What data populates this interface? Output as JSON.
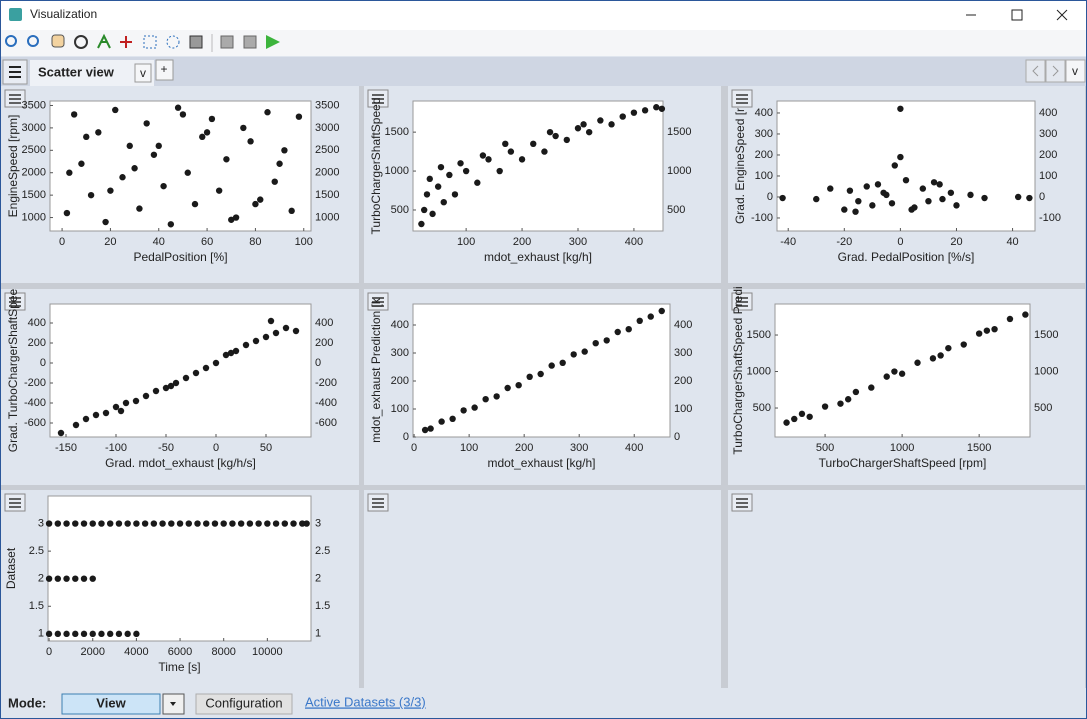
{
  "window": {
    "title": "Visualization"
  },
  "tabs": {
    "active": "Scatter view",
    "menu": "v",
    "add": "+",
    "list": "v"
  },
  "footer": {
    "mode_label": "Mode:",
    "mode_value": "View",
    "configuration": "Configuration",
    "active_datasets": "Active Datasets (3/3)"
  },
  "chart_data": [
    {
      "type": "scatter",
      "x_label": "PedalPosition [%]",
      "y_label": "EngineSpeed [rpm]",
      "color": "#1a1a1a",
      "xlim": [
        -5,
        103
      ],
      "ylim": [
        700,
        3600
      ],
      "xticks": [
        0,
        20,
        40,
        60,
        80,
        100
      ],
      "yticks": [
        1000,
        1500,
        2000,
        2500,
        3000,
        3500
      ],
      "x": [
        2,
        5,
        8,
        12,
        15,
        18,
        22,
        25,
        28,
        32,
        35,
        38,
        42,
        45,
        48,
        52,
        55,
        58,
        62,
        65,
        68,
        72,
        75,
        78,
        82,
        85,
        88,
        92,
        95,
        98,
        10,
        30,
        50,
        70,
        90,
        20,
        40,
        60,
        80,
        3
      ],
      "y": [
        1100,
        3300,
        2200,
        1500,
        2900,
        900,
        3400,
        1900,
        2600,
        1200,
        3100,
        2400,
        1700,
        850,
        3450,
        2000,
        1300,
        2800,
        3200,
        1600,
        2300,
        1000,
        3000,
        2700,
        1400,
        3350,
        1800,
        2500,
        1150,
        3250,
        2800,
        2100,
        3300,
        950,
        2200,
        1600,
        2600,
        2900,
        1300,
        2000
      ]
    },
    {
      "type": "scatter",
      "x_label": "mdot_exhaust [kg/h]",
      "y_label": "TurboChargerShaftSpeed",
      "color": "#1a1a1a",
      "xlim": [
        5,
        452
      ],
      "ylim": [
        230,
        1900
      ],
      "xticks": [
        100,
        200,
        300,
        400
      ],
      "yticks": [
        500,
        1000,
        1500
      ],
      "x": [
        20,
        25,
        30,
        40,
        50,
        60,
        70,
        80,
        100,
        120,
        140,
        160,
        180,
        200,
        220,
        240,
        260,
        280,
        300,
        320,
        340,
        360,
        380,
        400,
        420,
        440,
        450,
        35,
        55,
        90,
        130,
        170,
        250,
        310
      ],
      "y": [
        320,
        500,
        700,
        450,
        800,
        600,
        950,
        700,
        1000,
        850,
        1150,
        1000,
        1250,
        1150,
        1350,
        1250,
        1450,
        1400,
        1550,
        1500,
        1650,
        1600,
        1700,
        1750,
        1780,
        1820,
        1800,
        900,
        1050,
        1100,
        1200,
        1350,
        1500,
        1600
      ]
    },
    {
      "type": "scatter",
      "x_label": "Grad. PedalPosition [%/s]",
      "y_label": "Grad. EngineSpeed [r",
      "color": "#1a1a1a",
      "xlim": [
        -44,
        48
      ],
      "ylim": [
        -162,
        457
      ],
      "xticks": [
        -40,
        -20,
        0,
        20,
        40
      ],
      "yticks": [
        -100,
        0,
        100,
        200,
        300,
        400
      ],
      "x": [
        -42,
        -30,
        -25,
        -20,
        -18,
        -15,
        -12,
        -10,
        -8,
        -5,
        -3,
        0,
        2,
        5,
        8,
        10,
        12,
        15,
        18,
        20,
        25,
        30,
        42,
        46,
        -16,
        -6,
        4,
        14,
        0,
        -2
      ],
      "y": [
        -5,
        -10,
        40,
        -60,
        30,
        -20,
        50,
        -40,
        60,
        10,
        -30,
        420,
        80,
        -50,
        40,
        -20,
        70,
        -10,
        20,
        -40,
        10,
        -5,
        0,
        -5,
        -70,
        20,
        -60,
        60,
        190,
        150
      ]
    },
    {
      "type": "scatter",
      "x_label": "Grad. mdot_exhaust [kg/h/s]",
      "y_label": "Grad. TurboChargerShaftSpee",
      "color": "#1a1a1a",
      "xlim": [
        -166,
        95
      ],
      "ylim": [
        -740,
        590
      ],
      "xticks": [
        -150,
        -100,
        -50,
        0,
        50
      ],
      "yticks": [
        -600,
        -400,
        -200,
        0,
        200,
        400
      ],
      "x": [
        -155,
        -140,
        -130,
        -120,
        -110,
        -100,
        -90,
        -80,
        -70,
        -60,
        -50,
        -40,
        -30,
        -20,
        -10,
        0,
        10,
        20,
        30,
        40,
        50,
        60,
        70,
        80,
        -95,
        -45,
        15,
        55
      ],
      "y": [
        -700,
        -620,
        -560,
        -520,
        -500,
        -440,
        -400,
        -380,
        -330,
        -280,
        -250,
        -200,
        -150,
        -100,
        -50,
        0,
        80,
        120,
        180,
        220,
        260,
        300,
        350,
        320,
        -480,
        -230,
        100,
        420
      ]
    },
    {
      "type": "scatter",
      "x_label": "mdot_exhaust [kg/h]",
      "y_label": "mdot_exhaust Prediction [k",
      "color": "#1a1a1a",
      "xlim": [
        -2,
        465
      ],
      "ylim": [
        0,
        475
      ],
      "xticks": [
        0,
        100,
        200,
        300,
        400
      ],
      "yticks": [
        0,
        100,
        200,
        300,
        400
      ],
      "x": [
        20,
        30,
        50,
        70,
        90,
        110,
        130,
        150,
        170,
        190,
        210,
        230,
        250,
        270,
        290,
        310,
        330,
        350,
        370,
        390,
        410,
        430,
        450
      ],
      "y": [
        25,
        30,
        55,
        65,
        95,
        105,
        135,
        145,
        175,
        185,
        215,
        225,
        255,
        265,
        295,
        305,
        335,
        345,
        375,
        385,
        415,
        430,
        450
      ]
    },
    {
      "type": "scatter",
      "x_label": "TurboChargerShaftSpeed [rpm]",
      "y_label": "TurboChargerShaftSpeed Predi",
      "color": "#1a1a1a",
      "xlim": [
        175,
        1830
      ],
      "ylim": [
        103,
        1925
      ],
      "xticks": [
        500,
        1000,
        1500
      ],
      "yticks": [
        500,
        1000,
        1500
      ],
      "x": [
        250,
        300,
        400,
        500,
        600,
        700,
        800,
        900,
        1000,
        1100,
        1200,
        1300,
        1400,
        1500,
        1600,
        1700,
        1800,
        350,
        650,
        950,
        1250,
        1550
      ],
      "y": [
        300,
        350,
        380,
        520,
        560,
        720,
        780,
        930,
        970,
        1120,
        1180,
        1320,
        1370,
        1520,
        1580,
        1720,
        1780,
        420,
        620,
        1000,
        1220,
        1560
      ]
    },
    {
      "type": "scatter",
      "x_label": "Time [s]",
      "y_label": "Dataset",
      "color": "#1a1a1a",
      "xlim": [
        -50,
        12000
      ],
      "ylim": [
        0.87,
        3.5
      ],
      "xticks": [
        0,
        2000,
        4000,
        6000,
        8000,
        10000
      ],
      "yticks": [
        1,
        1.5,
        2,
        2.5,
        3
      ],
      "x": [
        0,
        400,
        800,
        1200,
        1600,
        2000,
        2400,
        2800,
        3200,
        3600,
        4000,
        0,
        400,
        800,
        1200,
        1600,
        2000,
        0,
        400,
        800,
        1200,
        1600,
        2000,
        2400,
        2800,
        3200,
        3600,
        4000,
        4400,
        4800,
        5200,
        5600,
        6000,
        6400,
        6800,
        7200,
        7600,
        8000,
        8400,
        8800,
        9200,
        9600,
        10000,
        10400,
        10800,
        11200,
        11600,
        11800
      ],
      "y": [
        1,
        1,
        1,
        1,
        1,
        1,
        1,
        1,
        1,
        1,
        1,
        2,
        2,
        2,
        2,
        2,
        2,
        3,
        3,
        3,
        3,
        3,
        3,
        3,
        3,
        3,
        3,
        3,
        3,
        3,
        3,
        3,
        3,
        3,
        3,
        3,
        3,
        3,
        3,
        3,
        3,
        3,
        3,
        3,
        3,
        3,
        3,
        3
      ]
    }
  ]
}
